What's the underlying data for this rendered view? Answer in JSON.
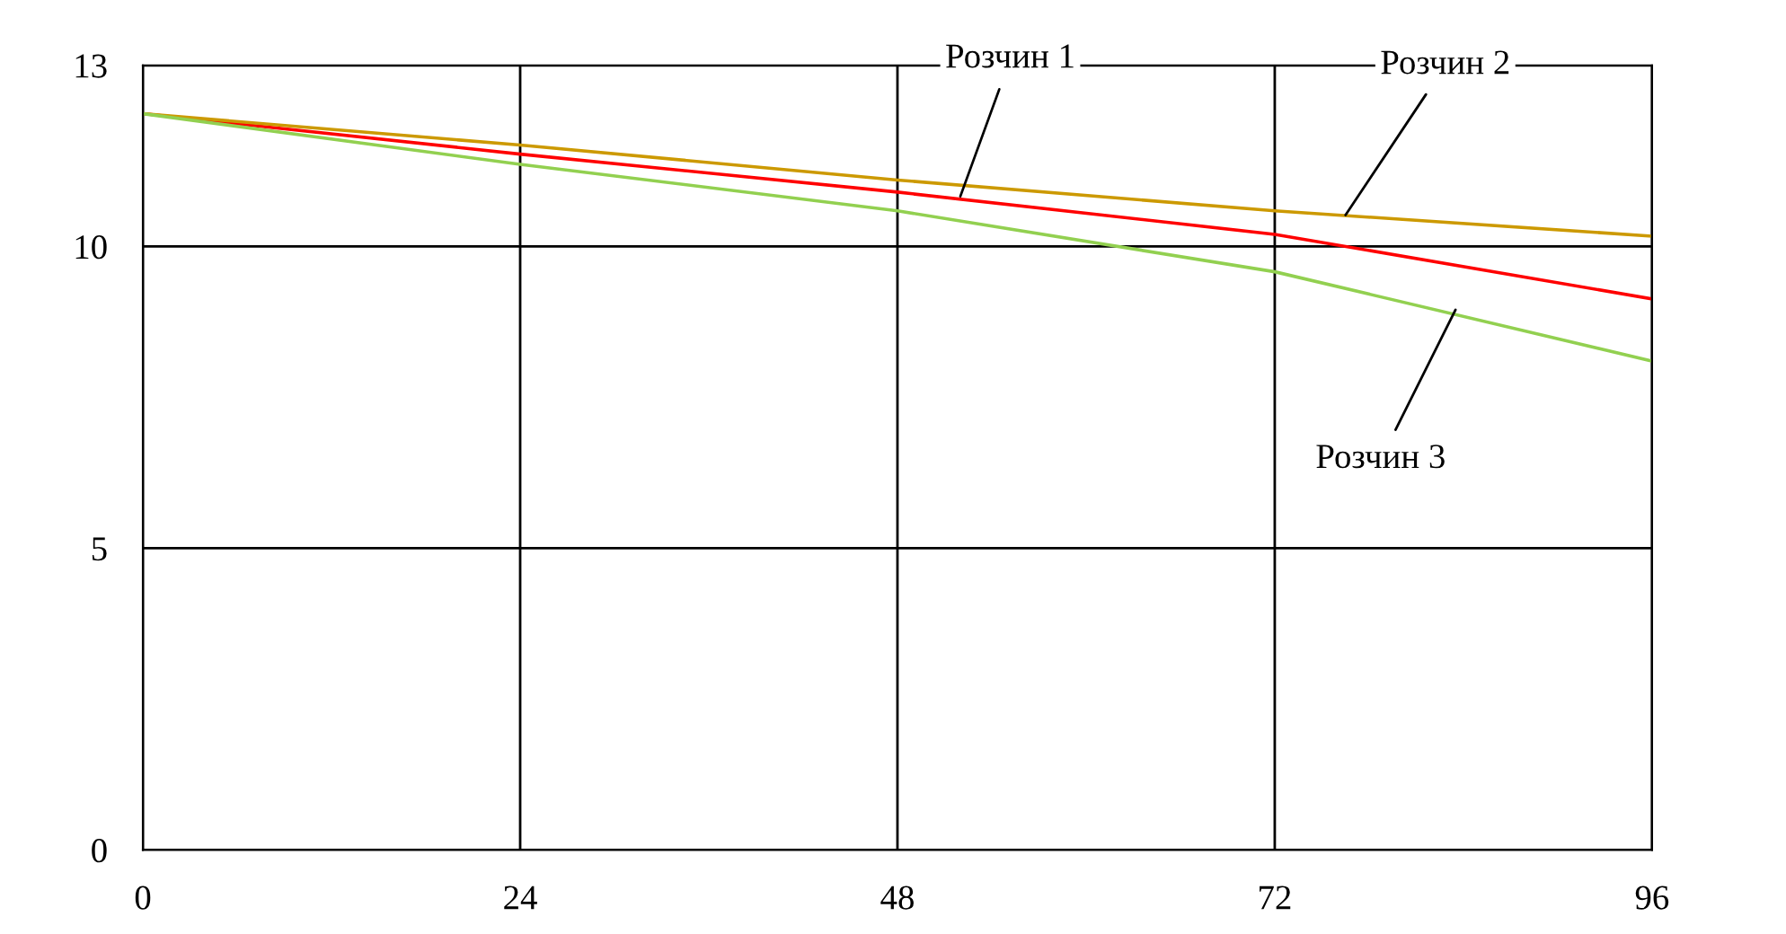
{
  "chart_data": {
    "type": "line",
    "x": [
      0,
      24,
      48,
      72,
      96
    ],
    "series": [
      {
        "color": "#ff0000",
        "values": [
          12.2,
          11.53,
          10.9,
          10.2,
          9.13
        ]
      },
      {
        "color": "#cc9900",
        "values": [
          12.2,
          11.68,
          11.1,
          10.59,
          10.17
        ]
      },
      {
        "color": "#92d050",
        "values": [
          12.2,
          11.36,
          10.59,
          9.58,
          8.1
        ]
      }
    ],
    "annotations": [
      {
        "text": "Розчин 1",
        "x": 52,
        "y": 10.83
      },
      {
        "text": "Розчин 2",
        "x": 76.5,
        "y": 10.52
      },
      {
        "text": "Розчин 3",
        "x": 83.5,
        "y": 8.95
      }
    ],
    "xlim": [
      0,
      96
    ],
    "xticks": [
      0,
      24,
      48,
      72,
      96
    ],
    "ylim": [
      0,
      13
    ],
    "yticks": [
      0,
      5,
      10,
      13
    ],
    "grid": true
  }
}
